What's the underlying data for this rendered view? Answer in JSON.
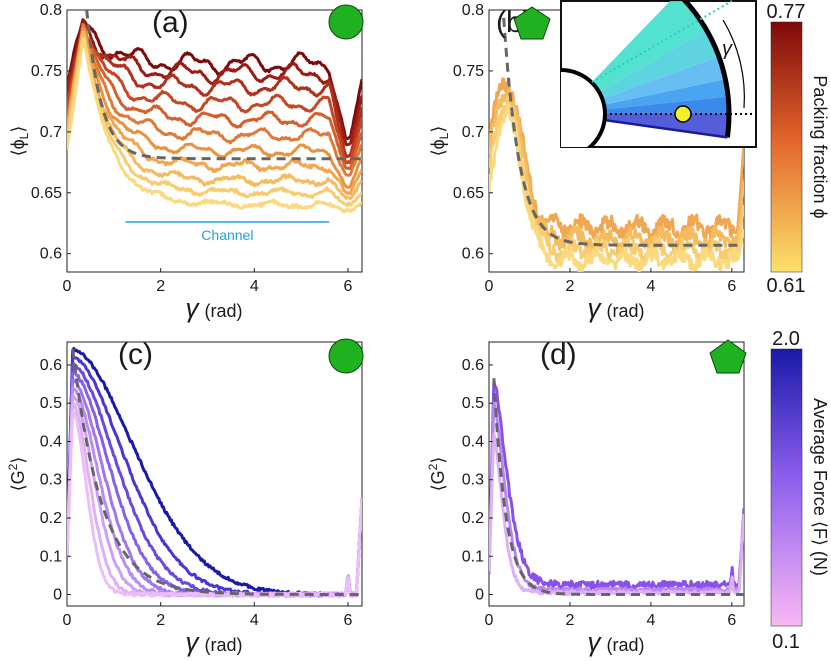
{
  "panels": [
    {
      "id": "a",
      "label": "(a)",
      "ylabel_main": "⟨ϕ",
      "ylabel_sub": "L",
      "ylabel_close": "⟩",
      "xlabel_symbol": "γ",
      "xlabel_unit": "(rad)",
      "xlim": [
        0,
        6.3
      ],
      "ylim": [
        0.585,
        0.8
      ],
      "xticks": [
        0,
        2,
        4,
        6
      ],
      "yticks": [
        0.6,
        0.65,
        0.7,
        0.75,
        0.8
      ],
      "tick_labels_x": [
        "0",
        "2",
        "4",
        "6"
      ],
      "tick_labels_y": [
        "0.6",
        "0.65",
        "0.7",
        "0.75",
        "0.8"
      ],
      "shape": "circle",
      "shape_color": "#1fb11f",
      "annotation": "Channel",
      "annotation_range": [
        1.25,
        5.6
      ],
      "annotation_y": 0.626,
      "series": [
        {
          "plateau": 0.756,
          "peak": 0.79,
          "end": 0.743,
          "dip": 0.695,
          "color": "#7d0a0a"
        },
        {
          "plateau": 0.748,
          "peak": 0.79,
          "end": 0.73,
          "dip": 0.69,
          "color": "#9a1d14"
        },
        {
          "plateau": 0.737,
          "peak": 0.789,
          "end": 0.72,
          "dip": 0.68,
          "color": "#b0301c"
        },
        {
          "plateau": 0.723,
          "peak": 0.788,
          "end": 0.71,
          "dip": 0.675,
          "color": "#c44824"
        },
        {
          "plateau": 0.71,
          "peak": 0.787,
          "end": 0.7,
          "dip": 0.67,
          "color": "#d4612d"
        },
        {
          "plateau": 0.697,
          "peak": 0.786,
          "end": 0.69,
          "dip": 0.665,
          "color": "#e07a37"
        },
        {
          "plateau": 0.684,
          "peak": 0.785,
          "end": 0.68,
          "dip": 0.655,
          "color": "#ea9243"
        },
        {
          "plateau": 0.672,
          "peak": 0.784,
          "end": 0.67,
          "dip": 0.65,
          "color": "#f1a750"
        },
        {
          "plateau": 0.66,
          "peak": 0.783,
          "end": 0.66,
          "dip": 0.645,
          "color": "#f5bb5f"
        },
        {
          "plateau": 0.65,
          "peak": 0.782,
          "end": 0.65,
          "dip": 0.64,
          "color": "#f8cc6f"
        },
        {
          "plateau": 0.64,
          "peak": 0.781,
          "end": 0.642,
          "dip": 0.635,
          "color": "#fbd97f"
        }
      ],
      "fit": {
        "type": "exp_decay",
        "asymptote": 0.678,
        "amplitude": 0.18,
        "rate": 3.2,
        "x0": 0.3
      }
    },
    {
      "id": "b",
      "label": "(b)",
      "ylabel_main": "⟨ϕ",
      "ylabel_sub": "L",
      "ylabel_close": "⟩",
      "xlabel_symbol": "γ",
      "xlabel_unit": "(rad)",
      "xlim": [
        0,
        6.3
      ],
      "ylim": [
        0.585,
        0.8
      ],
      "xticks": [
        0,
        2,
        4,
        6
      ],
      "yticks": [
        0.6,
        0.65,
        0.7,
        0.75,
        0.8
      ],
      "tick_labels_x": [
        "0",
        "2",
        "4",
        "6"
      ],
      "tick_labels_y": [
        "0.6",
        "0.65",
        "0.7",
        "0.75",
        "0.8"
      ],
      "shape": "pentagon",
      "shape_color": "#1fb11f",
      "inset_symbol": "γ",
      "series": [
        {
          "plateau": 0.622,
          "peak": 0.742,
          "end": 0.69,
          "color": "#f1a750"
        },
        {
          "plateau": 0.612,
          "peak": 0.735,
          "end": 0.66,
          "color": "#f5bb5f"
        },
        {
          "plateau": 0.603,
          "peak": 0.725,
          "end": 0.64,
          "color": "#f8cc6f"
        },
        {
          "plateau": 0.595,
          "peak": 0.715,
          "end": 0.62,
          "color": "#fbd97f"
        }
      ],
      "fit": {
        "type": "exp_decay",
        "asymptote": 0.607,
        "amplitude": 0.22,
        "rate": 2.6,
        "x0": 0.3
      }
    },
    {
      "id": "c",
      "label": "(c)",
      "ylabel_main": "⟨G",
      "ylabel_sup": "2",
      "ylabel_close": "⟩",
      "xlabel_symbol": "γ",
      "xlabel_unit": "(rad)",
      "xlim": [
        0,
        6.3
      ],
      "ylim": [
        -0.03,
        0.66
      ],
      "xticks": [
        0,
        2,
        4,
        6
      ],
      "yticks": [
        0,
        0.1,
        0.2,
        0.3,
        0.4,
        0.5,
        0.6
      ],
      "tick_labels_x": [
        "0",
        "2",
        "4",
        "6"
      ],
      "tick_labels_y": [
        "0",
        "0.1",
        "0.2",
        "0.3",
        "0.4",
        "0.5",
        "0.6"
      ],
      "shape": "circle",
      "shape_color": "#1fb11f",
      "series": [
        {
          "peak": 0.64,
          "width": 1.9,
          "color": "#1a1aa8"
        },
        {
          "peak": 0.62,
          "width": 1.55,
          "color": "#4a36d4"
        },
        {
          "peak": 0.6,
          "width": 1.3,
          "color": "#6a4ae0"
        },
        {
          "peak": 0.58,
          "width": 1.1,
          "color": "#8560e8"
        },
        {
          "peak": 0.56,
          "width": 0.92,
          "color": "#a276ee"
        },
        {
          "peak": 0.54,
          "width": 0.78,
          "color": "#bb8cf2"
        },
        {
          "peak": 0.52,
          "width": 0.65,
          "color": "#d0a0f4"
        },
        {
          "peak": 0.5,
          "width": 0.52,
          "color": "#e0b0f6"
        },
        {
          "peak": 0.48,
          "width": 0.42,
          "color": "#ecbef8"
        }
      ],
      "fit": {
        "type": "exp_decay",
        "asymptote": 0.0,
        "amplitude": 0.72,
        "rate": 1.6,
        "x0": 0.05
      }
    },
    {
      "id": "d",
      "label": "(d)",
      "ylabel_main": "⟨G",
      "ylabel_sup": "2",
      "ylabel_close": "⟩",
      "xlabel_symbol": "γ",
      "xlabel_unit": "(rad)",
      "xlim": [
        0,
        6.3
      ],
      "ylim": [
        -0.03,
        0.66
      ],
      "xticks": [
        0,
        2,
        4,
        6
      ],
      "yticks": [
        0,
        0.1,
        0.2,
        0.3,
        0.4,
        0.5,
        0.6
      ],
      "tick_labels_x": [
        "0",
        "2",
        "4",
        "6"
      ],
      "tick_labels_y": [
        "0",
        "0.1",
        "0.2",
        "0.3",
        "0.4",
        "0.5",
        "0.6"
      ],
      "shape": "pentagon",
      "shape_color": "#1fb11f",
      "series": [
        {
          "peak": 0.56,
          "width": 0.45,
          "floor": 0.025,
          "color": "#8a50ea"
        },
        {
          "peak": 0.5,
          "width": 0.38,
          "floor": 0.012,
          "color": "#b888f0"
        },
        {
          "peak": 0.42,
          "width": 0.3,
          "floor": 0.005,
          "color": "#e0b0f6"
        }
      ],
      "fit": {
        "type": "exp_decay",
        "asymptote": 0.0,
        "amplitude": 0.72,
        "rate": 3.4,
        "x0": 0.05
      }
    }
  ],
  "colorbars": [
    {
      "id": "packing",
      "title": "Packing fraction ϕ",
      "top_label": "0.77",
      "bottom_label": "0.61",
      "color_top": "#7d0a0a",
      "color_mid": "#f07a30",
      "color_bottom": "#fde16a"
    },
    {
      "id": "force",
      "title": "Average Force ⟨F⟩ (N)",
      "top_label": "2.0",
      "bottom_label": "0.1",
      "color_top": "#1a1aa8",
      "color_mid": "#9a6cf0",
      "color_bottom": "#f8b8f4"
    }
  ],
  "chart_data": [
    {
      "type": "line",
      "panel": "a",
      "xlabel": "γ (rad)",
      "ylabel": "⟨ϕL⟩",
      "xlim": [
        0,
        6.3
      ],
      "ylim": [
        0.585,
        0.8
      ],
      "legend": "colorbar: Packing fraction ϕ, 0.61–0.77",
      "series_plateaus": [
        0.756,
        0.748,
        0.737,
        0.723,
        0.71,
        0.697,
        0.684,
        0.672,
        0.66,
        0.65,
        0.64
      ],
      "fit_asymptote": 0.678
    },
    {
      "type": "line",
      "panel": "b",
      "xlabel": "γ (rad)",
      "ylabel": "⟨ϕL⟩",
      "xlim": [
        0,
        6.3
      ],
      "ylim": [
        0.585,
        0.8
      ],
      "series_plateaus": [
        0.622,
        0.612,
        0.603,
        0.595
      ],
      "fit_asymptote": 0.607
    },
    {
      "type": "line",
      "panel": "c",
      "xlabel": "γ (rad)",
      "ylabel": "⟨G²⟩",
      "xlim": [
        0,
        6.3
      ],
      "ylim": [
        -0.03,
        0.66
      ],
      "legend": "colorbar: Average Force ⟨F⟩ (N), 0.1–2.0",
      "series_peaks": [
        0.64,
        0.62,
        0.6,
        0.58,
        0.56,
        0.54,
        0.52,
        0.5,
        0.48
      ]
    },
    {
      "type": "line",
      "panel": "d",
      "xlabel": "γ (rad)",
      "ylabel": "⟨G²⟩",
      "xlim": [
        0,
        6.3
      ],
      "ylim": [
        -0.03,
        0.66
      ],
      "series_peaks": [
        0.56,
        0.5,
        0.42
      ]
    }
  ]
}
